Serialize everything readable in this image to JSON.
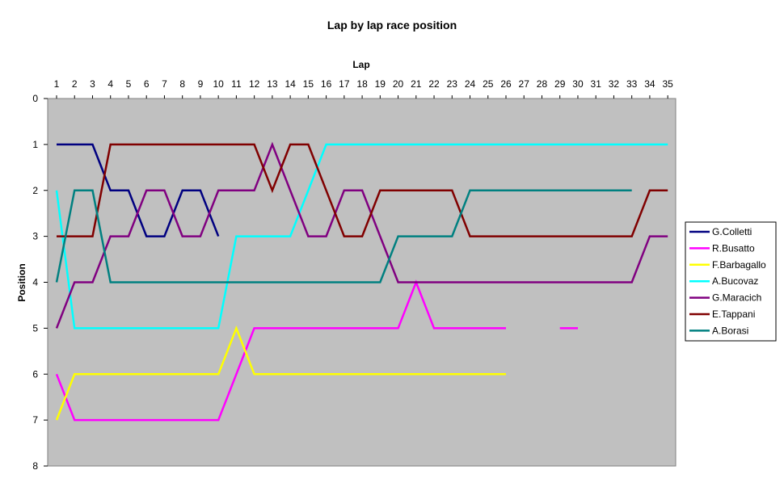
{
  "chart_data": {
    "type": "line",
    "title": "Lap by lap race position",
    "xlabel": "Lap",
    "ylabel": "Position",
    "x": [
      1,
      2,
      3,
      4,
      5,
      6,
      7,
      8,
      9,
      10,
      11,
      12,
      13,
      14,
      15,
      16,
      17,
      18,
      19,
      20,
      21,
      22,
      23,
      24,
      25,
      26,
      27,
      28,
      29,
      30,
      31,
      32,
      33,
      34,
      35
    ],
    "xlim": [
      1,
      35
    ],
    "ylim": [
      0,
      8
    ],
    "y_reversed": true,
    "x_axis_position": "top",
    "yticks": [
      0,
      1,
      2,
      3,
      4,
      5,
      6,
      7,
      8
    ],
    "grid": false,
    "plot_background": "#c0c0c0",
    "legend_position": "right",
    "series": [
      {
        "name": "G.Colletti",
        "color": "#000080",
        "values": [
          1,
          1,
          1,
          2,
          2,
          3,
          3,
          2,
          2,
          3,
          null,
          null,
          null,
          null,
          null,
          null,
          null,
          null,
          null,
          null,
          null,
          null,
          null,
          null,
          null,
          null,
          null,
          null,
          null,
          null,
          null,
          null,
          null,
          null,
          null
        ]
      },
      {
        "name": "R.Busatto",
        "color": "#ff00ff",
        "values": [
          6,
          7,
          7,
          7,
          7,
          7,
          7,
          7,
          7,
          7,
          6,
          5,
          5,
          5,
          5,
          5,
          5,
          5,
          5,
          5,
          4,
          5,
          5,
          5,
          5,
          5,
          null,
          null,
          5,
          5,
          null,
          null,
          null,
          null,
          null
        ]
      },
      {
        "name": "F.Barbagallo",
        "color": "#ffff00",
        "values": [
          7,
          6,
          6,
          6,
          6,
          6,
          6,
          6,
          6,
          6,
          5,
          6,
          6,
          6,
          6,
          6,
          6,
          6,
          6,
          6,
          6,
          6,
          6,
          6,
          6,
          6,
          null,
          null,
          null,
          null,
          null,
          null,
          null,
          null,
          null
        ]
      },
      {
        "name": "A.Bucovaz",
        "color": "#00ffff",
        "values": [
          2,
          5,
          5,
          5,
          5,
          5,
          5,
          5,
          5,
          5,
          3,
          3,
          3,
          3,
          2,
          1,
          1,
          1,
          1,
          1,
          1,
          1,
          1,
          1,
          1,
          1,
          1,
          1,
          1,
          1,
          1,
          1,
          1,
          1,
          1
        ]
      },
      {
        "name": "G.Maracich",
        "color": "#800080",
        "values": [
          5,
          4,
          4,
          3,
          3,
          2,
          2,
          3,
          3,
          2,
          2,
          2,
          1,
          2,
          3,
          3,
          2,
          2,
          3,
          4,
          4,
          4,
          4,
          4,
          4,
          4,
          4,
          4,
          4,
          4,
          4,
          4,
          4,
          3,
          3
        ]
      },
      {
        "name": "E.Tappani",
        "color": "#800000",
        "values": [
          3,
          3,
          3,
          1,
          1,
          1,
          1,
          1,
          1,
          1,
          1,
          1,
          2,
          1,
          1,
          2,
          3,
          3,
          2,
          2,
          2,
          2,
          2,
          3,
          3,
          3,
          3,
          3,
          3,
          3,
          3,
          3,
          3,
          2,
          2
        ]
      },
      {
        "name": "A.Borasi",
        "color": "#008080",
        "values": [
          4,
          2,
          2,
          4,
          4,
          4,
          4,
          4,
          4,
          4,
          4,
          4,
          4,
          4,
          4,
          4,
          4,
          4,
          4,
          3,
          3,
          3,
          3,
          2,
          2,
          2,
          2,
          2,
          2,
          2,
          2,
          2,
          2,
          null,
          null
        ]
      }
    ]
  }
}
